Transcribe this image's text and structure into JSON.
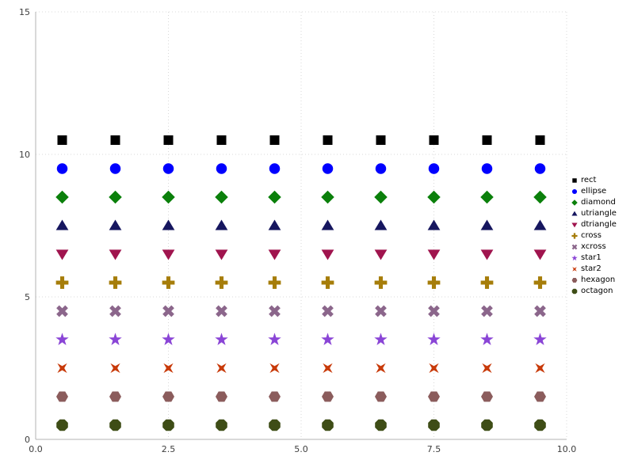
{
  "chart_data": {
    "type": "scatter",
    "title": "",
    "xlabel": "",
    "ylabel": "",
    "xlim": [
      0,
      10
    ],
    "ylim": [
      0,
      15
    ],
    "grid": true,
    "legend_position": "right",
    "xticks": [
      {
        "value": 0,
        "label": "0.0"
      },
      {
        "value": 2.5,
        "label": "2.5"
      },
      {
        "value": 5,
        "label": "5.0"
      },
      {
        "value": 7.5,
        "label": "7.5"
      },
      {
        "value": 10,
        "label": "10.0"
      }
    ],
    "yticks": [
      {
        "value": 0,
        "label": "0"
      },
      {
        "value": 5,
        "label": "5"
      },
      {
        "value": 10,
        "label": "10"
      },
      {
        "value": 15,
        "label": "15"
      }
    ],
    "x": [
      0.5,
      1.5,
      2.5,
      3.5,
      4.5,
      5.5,
      6.5,
      7.5,
      8.5,
      9.5
    ],
    "series": [
      {
        "name": "rect",
        "shape": "rect",
        "color": "#000000",
        "y": 10.5
      },
      {
        "name": "ellipse",
        "shape": "ellipse",
        "color": "#0000ff",
        "y": 9.5
      },
      {
        "name": "diamond",
        "shape": "diamond",
        "color": "#0b800b",
        "y": 8.5
      },
      {
        "name": "utriangle",
        "shape": "utriangle",
        "color": "#16165f",
        "y": 7.5
      },
      {
        "name": "dtriangle",
        "shape": "dtriangle",
        "color": "#a0144e",
        "y": 6.5
      },
      {
        "name": "cross",
        "shape": "cross",
        "color": "#a67d0a",
        "y": 5.5
      },
      {
        "name": "xcross",
        "shape": "xcross",
        "color": "#8b668b",
        "y": 4.5
      },
      {
        "name": "star1",
        "shape": "star1",
        "color": "#8a45d6",
        "y": 3.5
      },
      {
        "name": "star2",
        "shape": "star2",
        "color": "#c83a0a",
        "y": 2.5
      },
      {
        "name": "hexagon",
        "shape": "hexagon",
        "color": "#8b5c5c",
        "y": 1.5
      },
      {
        "name": "octagon",
        "shape": "octagon",
        "color": "#3e4d16",
        "y": 0.5
      }
    ]
  }
}
